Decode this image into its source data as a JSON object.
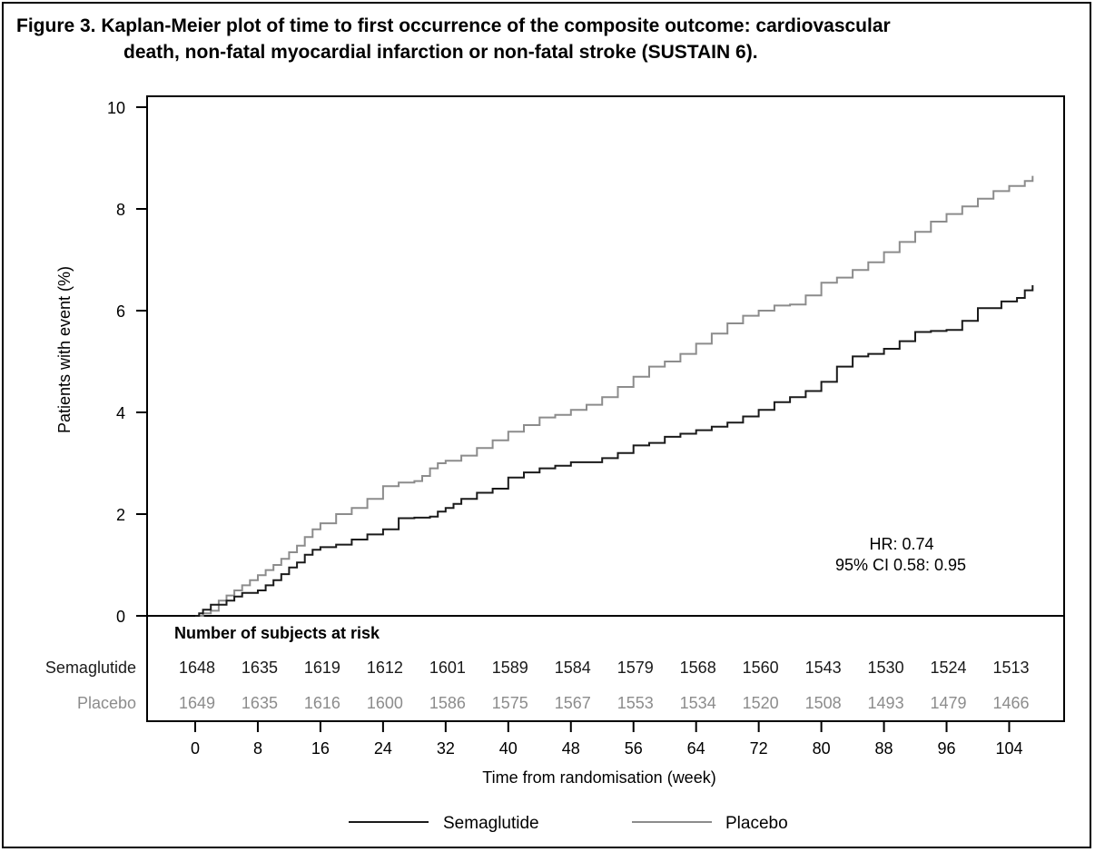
{
  "figure": {
    "title_line1": "Figure 3. Kaplan-Meier plot of time to first occurrence of the composite outcome: cardiovascular",
    "title_line2": "death, non-fatal myocardial infarction or non-fatal stroke (SUSTAIN 6)."
  },
  "chart_data": {
    "type": "line",
    "step": true,
    "title": "Figure 3. Kaplan-Meier plot of time to first occurrence of the composite outcome: cardiovascular death, non-fatal myocardial infarction or non-fatal stroke (SUSTAIN 6).",
    "xlabel": "Time from randomisation (week)",
    "ylabel": "Patients with event (%)",
    "xlim": [
      -4,
      110
    ],
    "ylim": [
      0,
      10
    ],
    "xticks": [
      0,
      8,
      16,
      24,
      32,
      40,
      48,
      56,
      64,
      72,
      80,
      88,
      96,
      104
    ],
    "yticks": [
      0,
      2,
      4,
      6,
      8,
      10
    ],
    "grid": false,
    "legend_position": "bottom",
    "annotation": {
      "hr": "HR: 0.74",
      "ci": "95% CI 0.58: 0.95"
    },
    "series": [
      {
        "name": "Semaglutide",
        "color": "#1a1a1a",
        "x": [
          0,
          0.5,
          1,
          2,
          3,
          4,
          5,
          6,
          8,
          9,
          10,
          11,
          12,
          13,
          14,
          15,
          16,
          18,
          20,
          22,
          24,
          26,
          28,
          30,
          31,
          32,
          33,
          34,
          36,
          38,
          40,
          42,
          44,
          46,
          48,
          52,
          54,
          56,
          58,
          60,
          62,
          64,
          66,
          68,
          70,
          72,
          74,
          76,
          78,
          80,
          82,
          84,
          86,
          88,
          90,
          92,
          94,
          96,
          98,
          100,
          103,
          105,
          106,
          107
        ],
        "y": [
          0,
          0.05,
          0.12,
          0.22,
          0.22,
          0.3,
          0.38,
          0.45,
          0.5,
          0.6,
          0.7,
          0.82,
          0.95,
          1.05,
          1.2,
          1.3,
          1.35,
          1.4,
          1.5,
          1.6,
          1.7,
          1.92,
          1.93,
          1.95,
          2.05,
          2.12,
          2.2,
          2.3,
          2.42,
          2.5,
          2.72,
          2.82,
          2.9,
          2.95,
          3.02,
          3.1,
          3.2,
          3.35,
          3.4,
          3.52,
          3.58,
          3.65,
          3.72,
          3.8,
          3.92,
          4.05,
          4.2,
          4.3,
          4.42,
          4.6,
          4.9,
          5.1,
          5.15,
          5.25,
          5.4,
          5.58,
          5.6,
          5.62,
          5.8,
          6.05,
          6.18,
          6.25,
          6.4,
          6.5
        ]
      },
      {
        "name": "Placebo",
        "color": "#8c8c8c",
        "x": [
          0,
          1,
          2,
          3,
          4,
          5,
          6,
          7,
          8,
          9,
          10,
          11,
          12,
          13,
          14,
          15,
          16,
          18,
          20,
          22,
          24,
          26,
          28,
          29,
          30,
          31,
          32,
          34,
          36,
          38,
          40,
          42,
          44,
          46,
          48,
          50,
          52,
          54,
          56,
          58,
          60,
          62,
          64,
          66,
          68,
          70,
          72,
          74,
          76,
          78,
          80,
          82,
          84,
          86,
          88,
          90,
          92,
          94,
          96,
          98,
          100,
          102,
          104,
          106,
          107
        ],
        "y": [
          0,
          0.05,
          0.1,
          0.3,
          0.4,
          0.5,
          0.6,
          0.7,
          0.8,
          0.9,
          1.0,
          1.12,
          1.25,
          1.38,
          1.55,
          1.7,
          1.82,
          2.0,
          2.12,
          2.3,
          2.55,
          2.62,
          2.65,
          2.75,
          2.9,
          3.0,
          3.05,
          3.15,
          3.3,
          3.45,
          3.62,
          3.75,
          3.9,
          3.95,
          4.05,
          4.15,
          4.3,
          4.5,
          4.7,
          4.9,
          5.0,
          5.15,
          5.35,
          5.55,
          5.75,
          5.9,
          6.0,
          6.1,
          6.12,
          6.3,
          6.55,
          6.65,
          6.8,
          6.95,
          7.15,
          7.35,
          7.55,
          7.75,
          7.9,
          8.05,
          8.2,
          8.35,
          8.45,
          8.55,
          8.65
        ]
      }
    ],
    "risk_table": {
      "header": "Number of subjects at risk",
      "rows": [
        {
          "label": "Semaglutide",
          "color": "#1a1a1a",
          "values": [
            "1648",
            "1635",
            "1619",
            "1612",
            "1601",
            "1589",
            "1584",
            "1579",
            "1568",
            "1560",
            "1543",
            "1530",
            "1524",
            "1513"
          ]
        },
        {
          "label": "Placebo",
          "color": "#8c8c8c",
          "values": [
            "1649",
            "1635",
            "1616",
            "1600",
            "1586",
            "1575",
            "1567",
            "1553",
            "1534",
            "1520",
            "1508",
            "1493",
            "1479",
            "1466"
          ]
        }
      ]
    }
  }
}
